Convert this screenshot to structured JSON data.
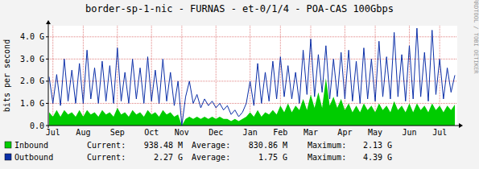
{
  "chart_data": {
    "type": "line",
    "title": "border-sp-1-nic - FURNAS - et-0/1/4 - POA-CAS 100Gbps",
    "y_label": "bits per second",
    "watermark": "RRDTOOL / TOBI OETIKER",
    "grid": true,
    "ylim": [
      0,
      4.5
    ],
    "yticks": [
      {
        "value": 0,
        "label": "0.0"
      },
      {
        "value": 1,
        "label": "1.0 G"
      },
      {
        "value": 2,
        "label": "2.0 G"
      },
      {
        "value": 3,
        "label": "3.0 G"
      },
      {
        "value": 4,
        "label": "4.0 G"
      }
    ],
    "categories": [
      null,
      "Jul",
      null,
      null,
      null,
      null,
      null,
      null,
      null,
      "Aug",
      null,
      null,
      null,
      null,
      null,
      null,
      null,
      null,
      "Sep",
      null,
      null,
      null,
      null,
      null,
      null,
      null,
      null,
      "Oct",
      null,
      null,
      null,
      null,
      null,
      null,
      null,
      "Nov",
      null,
      null,
      null,
      null,
      null,
      null,
      null,
      null,
      "Dec",
      null,
      null,
      null,
      null,
      null,
      null,
      null,
      null,
      "Jan",
      null,
      null,
      null,
      null,
      null,
      null,
      null,
      "Feb",
      null,
      null,
      null,
      null,
      null,
      null,
      null,
      "Mar",
      null,
      null,
      null,
      null,
      null,
      null,
      null,
      null,
      "Apr",
      null,
      null,
      null,
      null,
      null,
      null,
      null,
      "May",
      null,
      null,
      null,
      null,
      null,
      null,
      null,
      null,
      "Jun",
      null,
      null,
      null,
      null,
      null,
      null,
      null,
      "Jul",
      null,
      null,
      null,
      null
    ],
    "stats_labels": [
      "Current:",
      "Average:",
      "Maximum:"
    ],
    "series": [
      {
        "name": "Inbound",
        "type": "area",
        "color": "#00cc00",
        "stats": [
          "938.48 M",
          "830.86 M",
          "2.13 G"
        ],
        "values": [
          0.6,
          0.4,
          0.7,
          0.4,
          0.7,
          0.5,
          0.6,
          0.4,
          0.7,
          0.4,
          0.7,
          0.5,
          0.6,
          0.4,
          0.7,
          0.5,
          0.6,
          0.4,
          0.8,
          0.5,
          0.6,
          0.4,
          0.7,
          0.5,
          0.6,
          0.4,
          0.7,
          0.5,
          0.6,
          0.4,
          0.7,
          0.5,
          0.6,
          0.4,
          0.5,
          0.0,
          0.3,
          0.4,
          0.3,
          0.4,
          0.3,
          0.4,
          0.3,
          0.4,
          0.3,
          0.4,
          0.3,
          0.3,
          0.2,
          0.3,
          0.2,
          0.3,
          0.4,
          0.6,
          0.4,
          0.7,
          0.4,
          0.6,
          0.5,
          0.7,
          0.5,
          0.9,
          0.6,
          1.0,
          0.6,
          0.9,
          0.7,
          1.2,
          0.7,
          1.4,
          0.8,
          1.5,
          0.8,
          2.13,
          0.9,
          1.3,
          0.8,
          1.2,
          0.7,
          1.0,
          0.6,
          0.9,
          0.6,
          1.0,
          0.7,
          0.9,
          0.6,
          1.0,
          0.7,
          0.9,
          0.6,
          1.1,
          0.7,
          0.9,
          0.6,
          1.0,
          0.6,
          1.0,
          0.7,
          0.9,
          0.6,
          1.0,
          0.7,
          0.9,
          0.6,
          0.9,
          0.7,
          0.94
        ]
      },
      {
        "name": "Outbound",
        "type": "line",
        "color": "#0b2fa8",
        "stats": [
          "2.27 G",
          "1.75 G",
          "4.39 G"
        ],
        "values": [
          2.2,
          1.0,
          2.3,
          0.9,
          3.0,
          1.1,
          2.5,
          1.0,
          2.8,
          1.0,
          3.4,
          1.2,
          2.6,
          1.0,
          2.9,
          1.1,
          2.7,
          1.0,
          3.5,
          1.1,
          2.4,
          1.0,
          3.0,
          1.2,
          2.6,
          1.0,
          3.1,
          1.1,
          2.5,
          1.0,
          3.0,
          1.1,
          2.4,
          0.9,
          2.0,
          0.0,
          1.3,
          2.0,
          1.0,
          1.4,
          0.8,
          1.2,
          0.9,
          1.1,
          0.8,
          1.0,
          0.7,
          0.9,
          0.5,
          0.7,
          0.4,
          0.6,
          1.0,
          2.0,
          0.9,
          2.8,
          1.0,
          2.4,
          1.1,
          2.9,
          1.2,
          3.1,
          1.3,
          2.7,
          1.2,
          2.4,
          1.0,
          3.4,
          1.4,
          3.9,
          1.3,
          3.2,
          1.5,
          3.6,
          1.2,
          3.0,
          1.3,
          3.3,
          1.2,
          3.4,
          1.1,
          2.9,
          1.0,
          3.5,
          1.2,
          3.0,
          1.1,
          3.8,
          1.3,
          3.1,
          1.2,
          4.2,
          1.3,
          3.2,
          1.1,
          3.6,
          1.2,
          4.39,
          1.3,
          3.3,
          1.1,
          4.3,
          1.4,
          3.0,
          1.2,
          2.6,
          1.5,
          2.27
        ]
      }
    ]
  }
}
